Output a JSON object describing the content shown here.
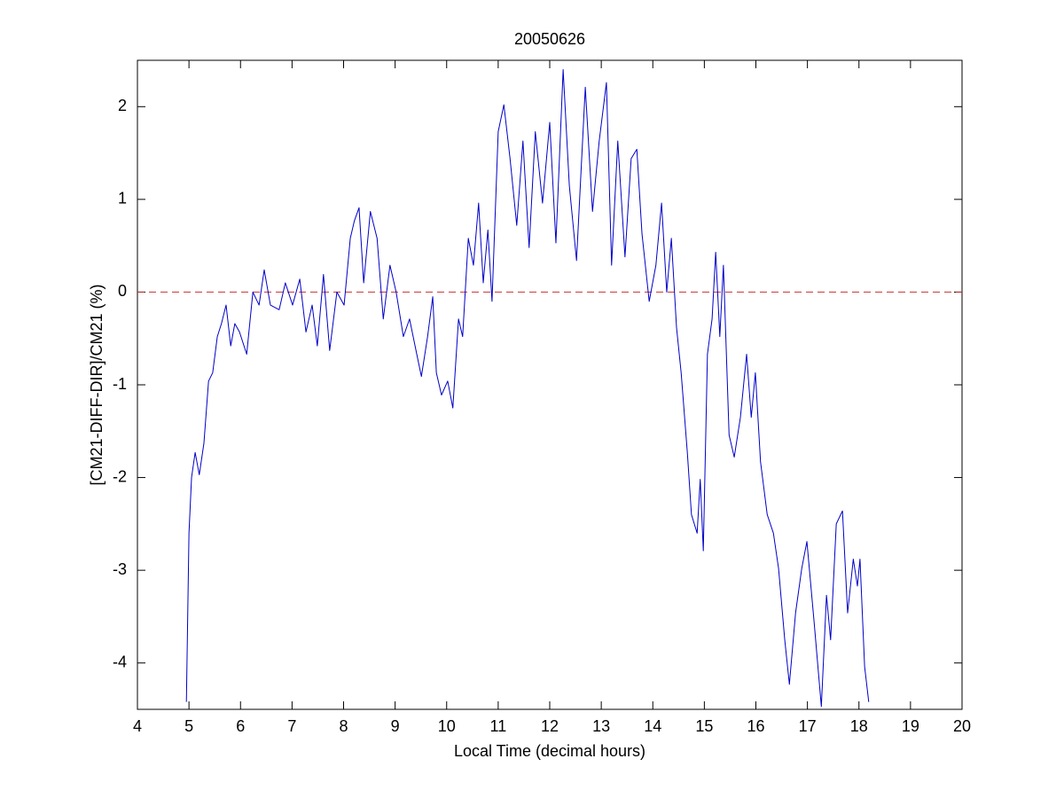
{
  "chart_data": {
    "type": "line",
    "title": "20050626",
    "xlabel": "Local Time (decimal hours)",
    "ylabel": "[CM21-DIFF-DIR]/CM21 (%)",
    "x": [
      4.95,
      5.0,
      5.05,
      5.12,
      5.2,
      5.29,
      5.38,
      5.46,
      5.55,
      5.63,
      5.72,
      5.81,
      5.89,
      5.98,
      6.12,
      6.24,
      6.36,
      6.46,
      6.58,
      6.75,
      6.87,
      7.01,
      7.15,
      7.27,
      7.39,
      7.49,
      7.61,
      7.73,
      7.87,
      8.01,
      8.13,
      8.21,
      8.3,
      8.39,
      8.52,
      8.65,
      8.77,
      8.9,
      9.02,
      9.16,
      9.28,
      9.42,
      9.51,
      9.63,
      9.73,
      9.8,
      9.9,
      10.02,
      10.12,
      10.23,
      10.31,
      10.42,
      10.52,
      10.62,
      10.71,
      10.8,
      10.88,
      11.0,
      11.11,
      11.23,
      11.36,
      11.48,
      11.6,
      11.72,
      11.86,
      12.0,
      12.12,
      12.26,
      12.38,
      12.52,
      12.69,
      12.83,
      12.96,
      13.1,
      13.2,
      13.32,
      13.46,
      13.58,
      13.69,
      13.79,
      13.93,
      14.06,
      14.17,
      14.27,
      14.36,
      14.46,
      14.55,
      14.67,
      14.75,
      14.86,
      14.92,
      14.98,
      15.06,
      15.15,
      15.22,
      15.3,
      15.37,
      15.48,
      15.58,
      15.7,
      15.82,
      15.91,
      15.99,
      16.09,
      16.22,
      16.34,
      16.44,
      16.56,
      16.65,
      16.77,
      16.89,
      16.99,
      17.13,
      17.27,
      17.37,
      17.45,
      17.56,
      17.68,
      17.78,
      17.89,
      17.97,
      18.02,
      18.11,
      18.19
    ],
    "values": [
      -4.42,
      -2.6,
      -2.0,
      -1.73,
      -1.97,
      -1.63,
      -0.96,
      -0.87,
      -0.48,
      -0.34,
      -0.14,
      -0.58,
      -0.34,
      -0.43,
      -0.67,
      0,
      -0.14,
      0.24,
      -0.14,
      -0.19,
      0.1,
      -0.14,
      0.14,
      -0.43,
      -0.14,
      -0.58,
      0.19,
      -0.63,
      0,
      -0.14,
      0.58,
      0.77,
      0.91,
      0.1,
      0.87,
      0.58,
      -0.29,
      0.29,
      0,
      -0.48,
      -0.29,
      -0.67,
      -0.91,
      -0.48,
      -0.05,
      -0.87,
      -1.11,
      -0.96,
      -1.25,
      -0.29,
      -0.48,
      0.58,
      0.29,
      0.96,
      0.1,
      0.67,
      -0.1,
      1.73,
      2.02,
      1.44,
      0.72,
      1.63,
      0.48,
      1.73,
      0.96,
      1.83,
      0.53,
      2.4,
      1.15,
      0.34,
      2.21,
      0.87,
      1.63,
      2.26,
      0.29,
      1.63,
      0.38,
      1.44,
      1.54,
      0.63,
      -0.1,
      0.29,
      0.96,
      0,
      0.58,
      -0.38,
      -0.87,
      -1.73,
      -2.4,
      -2.6,
      -2.02,
      -2.79,
      -0.67,
      -0.29,
      0.43,
      -0.48,
      0.29,
      -1.54,
      -1.78,
      -1.35,
      -0.67,
      -1.35,
      -0.87,
      -1.83,
      -2.4,
      -2.6,
      -2.98,
      -3.75,
      -4.23,
      -3.46,
      -2.98,
      -2.69,
      -3.56,
      -4.47,
      -3.27,
      -3.75,
      -2.5,
      -2.36,
      -3.46,
      -2.88,
      -3.17,
      -2.88,
      -4.04,
      -4.42
    ],
    "color": "#0000c8",
    "reference_line": {
      "value": 0,
      "color": "#c83232",
      "dashed": true
    },
    "xlim": [
      4,
      20
    ],
    "xticks": [
      4,
      5,
      6,
      7,
      8,
      9,
      10,
      11,
      12,
      13,
      14,
      15,
      16,
      17,
      18,
      19,
      20
    ],
    "ylim": [
      -4.5,
      2.5
    ],
    "yticks": [
      -4,
      -3,
      -2,
      -1,
      0,
      1,
      2
    ]
  }
}
